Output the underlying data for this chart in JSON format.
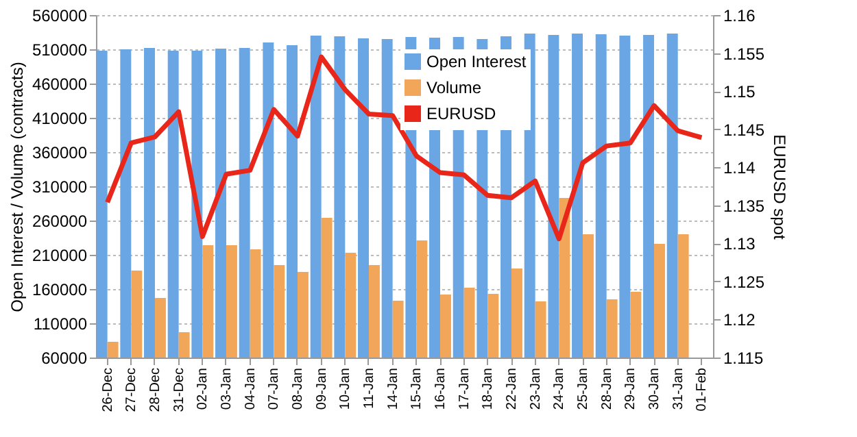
{
  "chart_data": {
    "type": "bar",
    "categories": [
      "26-Dec",
      "27-Dec",
      "28-Dec",
      "31-Dec",
      "02-Jan",
      "03-Jan",
      "04-Jan",
      "07-Jan",
      "08-Jan",
      "09-Jan",
      "10-Jan",
      "11-Jan",
      "14-Jan",
      "15-Jan",
      "16-Jan",
      "17-Jan",
      "18-Jan",
      "22-Jan",
      "23-Jan",
      "24-Jan",
      "25-Jan",
      "28-Jan",
      "29-Jan",
      "30-Jan",
      "31-Jan",
      "01-Feb"
    ],
    "series": [
      {
        "name": "Open Interest",
        "color": "#6aa6e4",
        "values": [
          508000,
          510000,
          512000,
          508000,
          508000,
          511000,
          512000,
          520000,
          516000,
          530000,
          529000,
          526000,
          525000,
          528000,
          527000,
          528000,
          525000,
          529000,
          533000,
          531000,
          533000,
          532000,
          530000,
          531000,
          533000,
          null
        ]
      },
      {
        "name": "Volume",
        "color": "#f2a65a",
        "values": [
          83000,
          187000,
          147000,
          97000,
          224000,
          224000,
          218000,
          195000,
          185000,
          264000,
          213000,
          195000,
          143000,
          231000,
          152000,
          162000,
          153000,
          190000,
          142000,
          293000,
          240000,
          145000,
          156000,
          226000,
          240000,
          null
        ]
      },
      {
        "name": "EURUSD",
        "type": "line",
        "axis": "y2",
        "color": "#e8261a",
        "values": [
          1.1354,
          1.1432,
          1.144,
          1.1473,
          1.1309,
          1.1391,
          1.1396,
          1.1476,
          1.1441,
          1.1545,
          1.1502,
          1.147,
          1.1468,
          1.1415,
          1.1393,
          1.139,
          1.1363,
          1.136,
          1.1382,
          1.1306,
          1.1406,
          1.1428,
          1.1432,
          1.1481,
          1.1448,
          1.1439
        ]
      }
    ],
    "ylabel": "Open Interest / Volume (contracts)",
    "y2label": "EURUSD spot",
    "ylim": [
      60000,
      560000
    ],
    "yticks": [
      60000,
      110000,
      160000,
      210000,
      260000,
      310000,
      360000,
      410000,
      460000,
      510000,
      560000
    ],
    "y2lim": [
      1.115,
      1.16
    ],
    "y2ticks": [
      1.115,
      1.12,
      1.125,
      1.13,
      1.135,
      1.14,
      1.145,
      1.15,
      1.155,
      1.16
    ],
    "grid": "y",
    "legend": "top",
    "marker": "none",
    "line_style": "solid"
  }
}
